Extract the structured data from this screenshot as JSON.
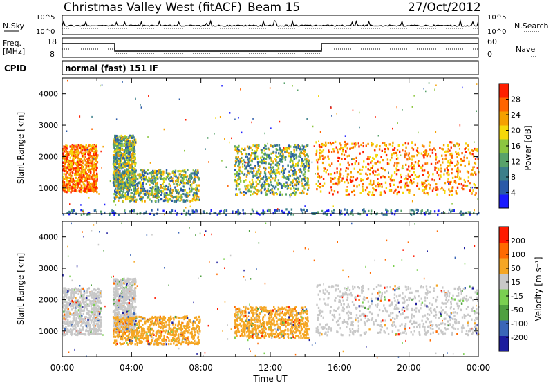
{
  "header": {
    "site": "Christmas Valley West (fitACF)",
    "beam": "Beam 15",
    "date": "27/Oct/2012"
  },
  "strips": {
    "nsky_label": "N.Sky",
    "nsearch_label": "N.Search",
    "nsky_ticks": [
      "10^5",
      "10^0"
    ],
    "nsearch_ticks": [
      "10^5",
      "10^0"
    ],
    "freq_label": "Freq.",
    "freq_unit": "[MHz]",
    "freq_ticks": [
      "18",
      "8"
    ],
    "nave_label": "Nave",
    "nave_ticks": [
      "60",
      "0"
    ],
    "cpid_label": "CPID",
    "cpid_value": "normal (fast) 151 IF"
  },
  "chart_data": [
    {
      "type": "heatmap",
      "name": "power",
      "ylabel": "Slant Range [km]",
      "ylim": [
        180,
        4500
      ],
      "yticks": [
        1000,
        2000,
        3000,
        4000
      ],
      "xlim_hours": [
        0,
        24
      ],
      "colorbar": {
        "label": "Power [dB]",
        "ticks": [
          "28",
          "24",
          "20",
          "16",
          "12",
          "8",
          "4"
        ],
        "range": [
          0,
          32
        ],
        "colors": [
          "#1a1aff",
          "#2a5aa8",
          "#3b7f8a",
          "#58a26a",
          "#8cc63f",
          "#f5d80a",
          "#f5a000",
          "#ff6400",
          "#ff1e00"
        ]
      },
      "echo_regions": [
        {
          "t0": 0.0,
          "t1": 2.0,
          "r0": 900,
          "r1": 2400,
          "level": "high"
        },
        {
          "t0": 2.9,
          "t1": 4.2,
          "r0": 1000,
          "r1": 2700,
          "level": "mid"
        },
        {
          "t0": 2.9,
          "t1": 7.9,
          "r0": 600,
          "r1": 1600,
          "level": "mid"
        },
        {
          "t0": 9.9,
          "t1": 14.2,
          "r0": 800,
          "r1": 2400,
          "level": "mid"
        },
        {
          "t0": 14.6,
          "t1": 24.0,
          "r0": 800,
          "r1": 2500,
          "level": "high"
        },
        {
          "t0": 0.0,
          "t1": 24.0,
          "r0": 180,
          "r1": 350,
          "level": "low"
        }
      ]
    },
    {
      "type": "heatmap",
      "name": "velocity",
      "ylabel": "Slant Range [km]",
      "ylim": [
        180,
        4500
      ],
      "yticks": [
        1000,
        2000,
        3000,
        4000
      ],
      "xlim_hours": [
        0,
        24
      ],
      "colorbar": {
        "label": "Velocity [m s⁻¹]",
        "ticks": [
          "200",
          "100",
          "50",
          "15",
          "-15",
          "-50",
          "-100",
          "-200"
        ],
        "colors": [
          "#1c1c9e",
          "#3a66b8",
          "#4fa040",
          "#7ad050",
          "#c8c8c8",
          "#f5a623",
          "#ff6a00",
          "#ff1a00"
        ]
      },
      "echo_regions": [
        {
          "t0": 0.0,
          "t1": 2.2,
          "r0": 900,
          "r1": 2400,
          "level": "grey"
        },
        {
          "t0": 2.9,
          "t1": 4.2,
          "r0": 1000,
          "r1": 2700,
          "level": "grey"
        },
        {
          "t0": 2.9,
          "t1": 7.9,
          "r0": 600,
          "r1": 1500,
          "level": "orange"
        },
        {
          "t0": 9.9,
          "t1": 14.2,
          "r0": 800,
          "r1": 1800,
          "level": "orange"
        },
        {
          "t0": 14.6,
          "t1": 24.0,
          "r0": 900,
          "r1": 2500,
          "level": "grey"
        }
      ]
    }
  ],
  "xaxis": {
    "label": "Time UT",
    "ticks": [
      "00:00",
      "04:00",
      "08:00",
      "12:00",
      "16:00",
      "20:00",
      "00:00"
    ]
  }
}
